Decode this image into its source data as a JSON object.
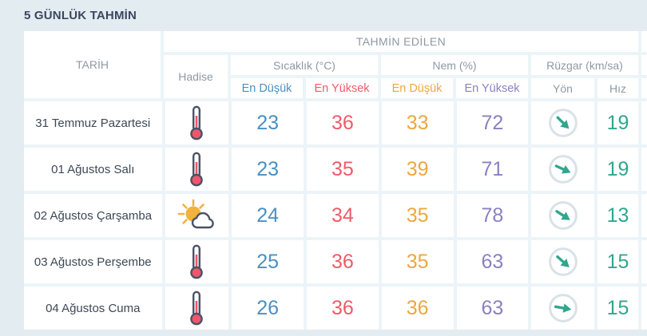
{
  "title": "5 GÜNLÜK TAHMİN",
  "table": {
    "headers": {
      "date": "TARİH",
      "predicted": "TAHMİN EDİLEN",
      "event": "Hadise",
      "temperature_group": "Sıcaklık (°C)",
      "humidity_group": "Nem (%)",
      "wind_group": "Rüzgar (km/sa)",
      "temp_min": "En Düşük",
      "temp_max": "En Yüksek",
      "hum_min": "En Düşük",
      "hum_max": "En Yüksek",
      "wind_dir": "Yön",
      "wind_speed": "Hız"
    },
    "rows": [
      {
        "date": "31 Temmuz Pazartesi",
        "icon": "thermometer-icon",
        "temp_min": "23",
        "temp_max": "36",
        "hum_min": "33",
        "hum_max": "72",
        "wind_dir_deg": 45,
        "wind_speed": "19"
      },
      {
        "date": "01 Ağustos Salı",
        "icon": "thermometer-icon",
        "temp_min": "23",
        "temp_max": "35",
        "hum_min": "39",
        "hum_max": "71",
        "wind_dir_deg": 25,
        "wind_speed": "19"
      },
      {
        "date": "02 Ağustos Çarşamba",
        "icon": "partly-cloudy-icon",
        "temp_min": "24",
        "temp_max": "34",
        "hum_min": "35",
        "hum_max": "78",
        "wind_dir_deg": 33,
        "wind_speed": "13"
      },
      {
        "date": "03 Ağustos Perşembe",
        "icon": "thermometer-icon",
        "temp_min": "25",
        "temp_max": "36",
        "hum_min": "35",
        "hum_max": "63",
        "wind_dir_deg": 42,
        "wind_speed": "15"
      },
      {
        "date": "04 Ağustos Cuma",
        "icon": "thermometer-icon",
        "temp_min": "26",
        "temp_max": "36",
        "hum_min": "36",
        "hum_max": "63",
        "wind_dir_deg": 10,
        "wind_speed": "15"
      }
    ]
  },
  "colors": {
    "temp_min": "#4a90c2",
    "temp_max": "#ef5b68",
    "hum_min": "#eda73f",
    "hum_max": "#8b80c2",
    "wind_speed": "#2fa78f",
    "title_text": "#3a4660",
    "header_text": "#8e99a4",
    "date_text": "#3d4856",
    "page_background": "#e3ecf1",
    "cell_gap": "#ecf4f8",
    "icon_outline": "#4a5265",
    "icon_red": "#f0566b",
    "icon_sun": "#f2b23e",
    "wind_arrow": "#2fa78f",
    "wind_circle": "#d9e2e8"
  }
}
